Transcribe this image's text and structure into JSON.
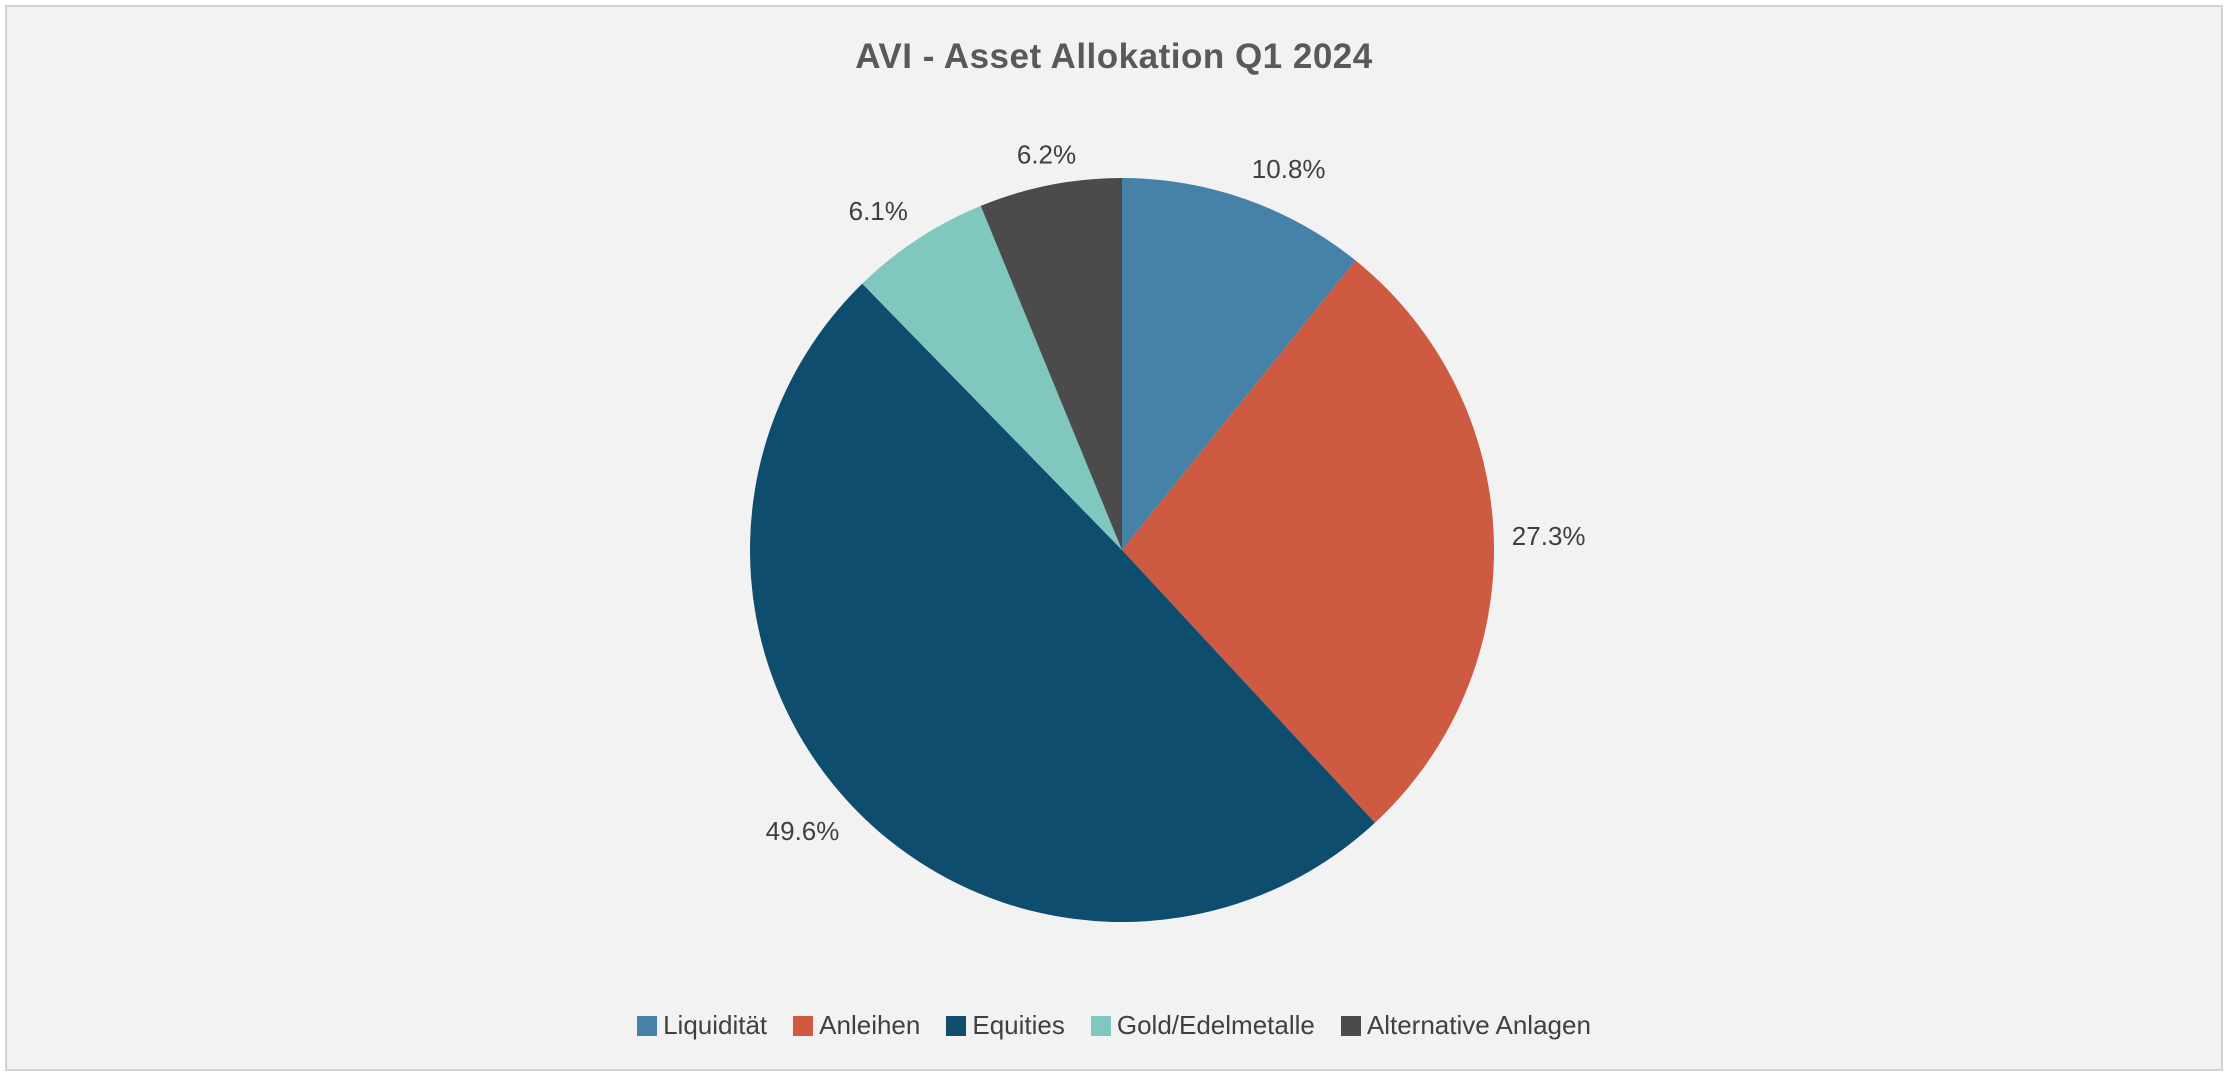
{
  "page": {
    "background": "#ffffff",
    "panel_background": "#f2f2f2",
    "panel_border_color": "#d2d2d2"
  },
  "chart_data": {
    "type": "pie",
    "title": "AVI - Asset Allokation Q1 2024",
    "title_color": "#595959",
    "label_color": "#3f3f3f",
    "legend_text_color": "#404040",
    "start_angle_deg": 0,
    "direction": "clockwise",
    "data_labels": "outside-end-percent",
    "legend_position": "bottom",
    "categories": [
      "Liquidität",
      "Anleihen",
      "Equities",
      "Gold/Edelmetalle",
      "Alternative Anlagen"
    ],
    "values": [
      10.8,
      27.3,
      49.6,
      6.1,
      6.2
    ],
    "slices": [
      {
        "label": "Liquidität",
        "value": 10.8,
        "display": "10.8%",
        "color": "#4682a8"
      },
      {
        "label": "Anleihen",
        "value": 27.3,
        "display": "27.3%",
        "color": "#cd5a41"
      },
      {
        "label": "Equities",
        "value": 49.6,
        "display": "49.6%",
        "color": "#0e4d6e"
      },
      {
        "label": "Gold/Edelmetalle",
        "value": 6.1,
        "display": "6.1%",
        "color": "#7fc7bf"
      },
      {
        "label": "Alternative Anlagen",
        "value": 6.2,
        "display": "6.2%",
        "color": "#4b4b4b"
      }
    ]
  }
}
